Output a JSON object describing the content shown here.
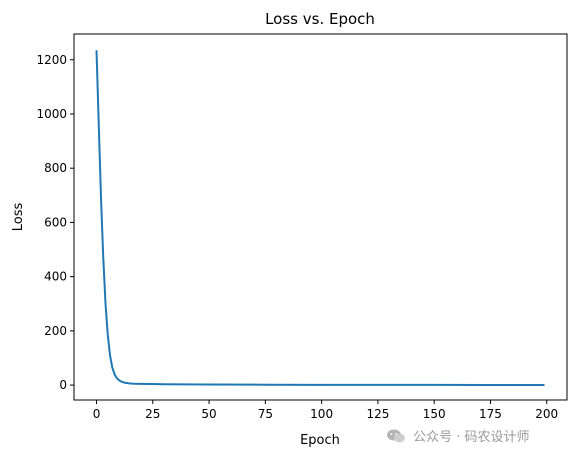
{
  "chart_data": {
    "type": "line",
    "title": "Loss vs. Epoch",
    "xlabel": "Epoch",
    "ylabel": "Loss",
    "xlim": [
      -10,
      209
    ],
    "ylim": [
      -55,
      1295
    ],
    "xticks": [
      0,
      25,
      50,
      75,
      100,
      125,
      150,
      175,
      200
    ],
    "yticks": [
      0,
      200,
      400,
      600,
      800,
      1000,
      1200
    ],
    "grid": false,
    "series": [
      {
        "color": "#1f77b4",
        "x": [
          0,
          1,
          2,
          3,
          4,
          5,
          6,
          7,
          8,
          9,
          10,
          11,
          12,
          13,
          14,
          15,
          17,
          20,
          25,
          30,
          40,
          50,
          75,
          100,
          125,
          150,
          175,
          199
        ],
        "y": [
          1235,
          960,
          690,
          470,
          300,
          185,
          110,
          65,
          40,
          26,
          18,
          13,
          10,
          8,
          7,
          6,
          5,
          4.5,
          3.8,
          3.2,
          2.5,
          2.0,
          1.4,
          1.0,
          0.8,
          0.6,
          0.5,
          0.4
        ]
      }
    ]
  },
  "watermark": {
    "icon": "wechat-icon",
    "text": "公众号 · 码农设计师"
  }
}
